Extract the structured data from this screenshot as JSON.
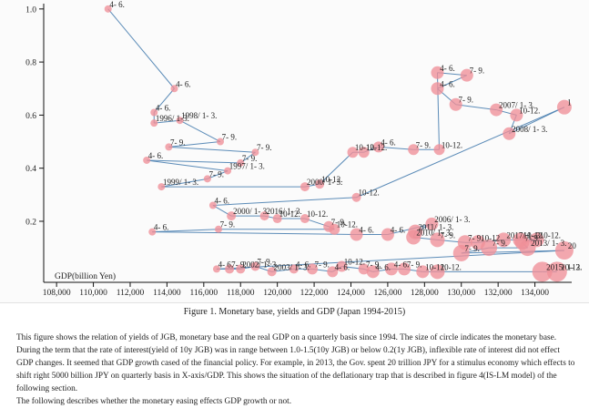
{
  "chart_data": {
    "type": "scatter",
    "title": "",
    "xlabel": "GDP(billion Yen)",
    "ylabel": "",
    "xlim": [
      107300,
      136000
    ],
    "ylim": [
      -0.03,
      1.02
    ],
    "xticks": [
      108000,
      110000,
      112000,
      114000,
      116000,
      118000,
      120000,
      122000,
      124000,
      126000,
      128000,
      130000,
      132000,
      134000
    ],
    "xtick_labels": [
      "108,000",
      "110,000",
      "112,000",
      "114,000",
      "116,000",
      "118,000",
      "120,000",
      "122,000",
      "124,000",
      "126,000",
      "128,000",
      "130,000",
      "132,000",
      "134,000"
    ],
    "yticks": [
      0.2,
      0.4,
      0.6,
      0.8,
      1.0
    ],
    "ytick_labels": [
      "0.2",
      "0.4",
      "0.6",
      "0.8",
      "1.0"
    ],
    "grid": false,
    "legend": "none",
    "line_color": "#4a7fb0",
    "marker_color": "#ef8f98",
    "points": [
      {
        "x": 110800,
        "y": 1.0,
        "r": 4,
        "label": "4- 6."
      },
      {
        "x": 114400,
        "y": 0.7,
        "r": 4,
        "label": "4- 6."
      },
      {
        "x": 113300,
        "y": 0.61,
        "r": 4,
        "label": "4- 6."
      },
      {
        "x": 113300,
        "y": 0.57,
        "r": 4,
        "label": "1996/ 1-3."
      },
      {
        "x": 114700,
        "y": 0.58,
        "r": 4,
        "label": "1998/ 1- 3."
      },
      {
        "x": 116900,
        "y": 0.5,
        "r": 4,
        "label": "7- 9."
      },
      {
        "x": 114100,
        "y": 0.48,
        "r": 4,
        "label": "7- 9."
      },
      {
        "x": 118800,
        "y": 0.46,
        "r": 4,
        "label": "7- 9."
      },
      {
        "x": 118000,
        "y": 0.42,
        "r": 4,
        "label": "7- 9."
      },
      {
        "x": 112900,
        "y": 0.43,
        "r": 4,
        "label": "4- 6."
      },
      {
        "x": 117300,
        "y": 0.39,
        "r": 4,
        "label": "1997/ 1- 3."
      },
      {
        "x": 116200,
        "y": 0.36,
        "r": 4,
        "label": "7- 9."
      },
      {
        "x": 113700,
        "y": 0.33,
        "r": 4,
        "label": "1999/ 1- 3."
      },
      {
        "x": 121500,
        "y": 0.33,
        "r": 5,
        "label": "2000/ 1- 3."
      },
      {
        "x": 122300,
        "y": 0.34,
        "r": 5,
        "label": "10-12."
      },
      {
        "x": 124100,
        "y": 0.46,
        "r": 6,
        "label": "10-12."
      },
      {
        "x": 124700,
        "y": 0.46,
        "r": 6,
        "label": "10-12."
      },
      {
        "x": 125500,
        "y": 0.48,
        "r": 6,
        "label": "4- 6."
      },
      {
        "x": 127400,
        "y": 0.47,
        "r": 6,
        "label": "7- 9."
      },
      {
        "x": 128800,
        "y": 0.47,
        "r": 6,
        "label": "10-12."
      },
      {
        "x": 128700,
        "y": 0.76,
        "r": 7,
        "label": "4- 6."
      },
      {
        "x": 130300,
        "y": 0.75,
        "r": 7,
        "label": "7- 9."
      },
      {
        "x": 128700,
        "y": 0.7,
        "r": 7,
        "label": "4- 6."
      },
      {
        "x": 129700,
        "y": 0.64,
        "r": 7,
        "label": "7- 9."
      },
      {
        "x": 131900,
        "y": 0.62,
        "r": 7,
        "label": "2007/ 1- 3."
      },
      {
        "x": 133000,
        "y": 0.6,
        "r": 7,
        "label": "10-12."
      },
      {
        "x": 132600,
        "y": 0.53,
        "r": 7,
        "label": "2008/ 1- 3."
      },
      {
        "x": 135600,
        "y": 0.63,
        "r": 8,
        "label": "1"
      },
      {
        "x": 124300,
        "y": 0.29,
        "r": 5,
        "label": "10-12."
      },
      {
        "x": 116500,
        "y": 0.26,
        "r": 4,
        "label": "4- 6."
      },
      {
        "x": 117500,
        "y": 0.22,
        "r": 5,
        "label": "2000/ 1- 3."
      },
      {
        "x": 119300,
        "y": 0.22,
        "r": 5,
        "label": "2016/ 1- 3."
      },
      {
        "x": 120000,
        "y": 0.21,
        "r": 5,
        "label": "10-12."
      },
      {
        "x": 121500,
        "y": 0.21,
        "r": 5,
        "label": "10-12."
      },
      {
        "x": 122800,
        "y": 0.18,
        "r": 6,
        "label": "7- 9."
      },
      {
        "x": 123100,
        "y": 0.17,
        "r": 6,
        "label": "10-12."
      },
      {
        "x": 116800,
        "y": 0.17,
        "r": 4,
        "label": "7- 9."
      },
      {
        "x": 113200,
        "y": 0.16,
        "r": 4,
        "label": "4- 6."
      },
      {
        "x": 124300,
        "y": 0.15,
        "r": 7,
        "label": "4- 6."
      },
      {
        "x": 126000,
        "y": 0.15,
        "r": 7,
        "label": "4- 6."
      },
      {
        "x": 128400,
        "y": 0.19,
        "r": 7,
        "label": "2006/ 1- 3."
      },
      {
        "x": 127500,
        "y": 0.16,
        "r": 8,
        "label": "2011/ 1- 3."
      },
      {
        "x": 127400,
        "y": 0.14,
        "r": 8,
        "label": "2010/ 1- 3."
      },
      {
        "x": 128700,
        "y": 0.13,
        "r": 8,
        "label": "7- 9."
      },
      {
        "x": 130200,
        "y": 0.12,
        "r": 8,
        "label": "7- 9."
      },
      {
        "x": 130900,
        "y": 0.12,
        "r": 8,
        "label": "10-12."
      },
      {
        "x": 132300,
        "y": 0.13,
        "r": 8,
        "label": "2017/ 1- 3."
      },
      {
        "x": 133200,
        "y": 0.13,
        "r": 8,
        "label": "10-12."
      },
      {
        "x": 134100,
        "y": 0.13,
        "r": 8,
        "label": "10-12."
      },
      {
        "x": 133300,
        "y": 0.12,
        "r": 8,
        "label": "7- 9."
      },
      {
        "x": 133600,
        "y": 0.1,
        "r": 9,
        "label": "2013/ 1- 3."
      },
      {
        "x": 131500,
        "y": 0.1,
        "r": 9,
        "label": "7- 9."
      },
      {
        "x": 130000,
        "y": 0.08,
        "r": 9,
        "label": "7- 9."
      },
      {
        "x": 135600,
        "y": 0.09,
        "r": 10,
        "label": "20"
      },
      {
        "x": 116700,
        "y": 0.02,
        "r": 4,
        "label": "4- 6."
      },
      {
        "x": 117400,
        "y": 0.02,
        "r": 5,
        "label": "7- 9."
      },
      {
        "x": 118000,
        "y": 0.02,
        "r": 5,
        "label": "2002/ 1- 3."
      },
      {
        "x": 118800,
        "y": 0.03,
        "r": 5,
        "label": "7- 9."
      },
      {
        "x": 119700,
        "y": 0.01,
        "r": 5,
        "label": "2003/ 1- 3."
      },
      {
        "x": 120900,
        "y": 0.02,
        "r": 5,
        "label": "4- 6."
      },
      {
        "x": 121900,
        "y": 0.02,
        "r": 6,
        "label": "7- 9."
      },
      {
        "x": 123000,
        "y": 0.01,
        "r": 6,
        "label": "4- 6."
      },
      {
        "x": 123500,
        "y": 0.03,
        "r": 6,
        "label": "10-12."
      },
      {
        "x": 124700,
        "y": 0.02,
        "r": 6,
        "label": "7- 9."
      },
      {
        "x": 125200,
        "y": 0.01,
        "r": 7,
        "label": "4- 6."
      },
      {
        "x": 126200,
        "y": 0.02,
        "r": 7,
        "label": "4- 6."
      },
      {
        "x": 126900,
        "y": 0.02,
        "r": 7,
        "label": "7- 9."
      },
      {
        "x": 127900,
        "y": 0.01,
        "r": 7,
        "label": "10-12."
      },
      {
        "x": 128700,
        "y": 0.01,
        "r": 8,
        "label": "10-12."
      },
      {
        "x": 134400,
        "y": 0.01,
        "r": 11,
        "label": "2015/ 1- 3."
      },
      {
        "x": 135200,
        "y": 0.01,
        "r": 11,
        "label": "10-12."
      }
    ]
  },
  "caption": "Figure 1. Monetary base, yields and GDP (Japan 1994-2015)",
  "paragraphs": [
    "This figure shows the relation of yields of JGB, monetary base and the real GDP on a quarterly basis since 1994. The size of circle indicates the monetary base.",
    "During the term that the rate of interest(yield of 10y JGB) was in range between 1.0-1.5(10y JGB) or below 0.2(1y JGB), inflexible rate of interest did not effect GDP changes. It seemed that GDP growth cased of the financial policy. For example, in 2013, the Gov. spent 20 trillion JPY for a stimulus economy which effects to shift right 5000 billion JPY on quarterly basis in X-axis/GDP. This shows the situation of the deflationary trap that is described in figure 4(IS-LM model) of the following section.",
    "The following describes whether the monetary easing effects GDP growth or not."
  ]
}
